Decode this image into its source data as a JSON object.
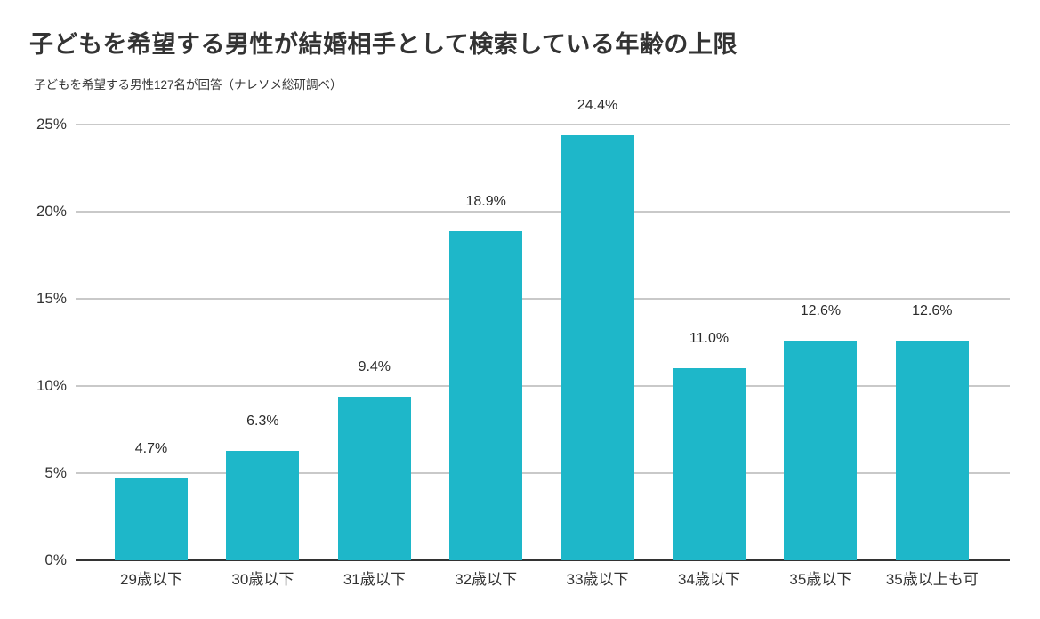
{
  "chart_data": {
    "type": "bar",
    "title": "子どもを希望する男性が結婚相手として検索している年齢の上限",
    "subtitle": "子どもを希望する男性127名が回答（ナレソメ総研調べ）",
    "categories": [
      "29歳以下",
      "30歳以下",
      "31歳以下",
      "32歳以下",
      "33歳以下",
      "34歳以下",
      "35歳以下",
      "35歳以上も可"
    ],
    "values": [
      4.7,
      6.3,
      9.4,
      18.9,
      24.4,
      11.0,
      12.6,
      12.6
    ],
    "value_labels": [
      "4.7%",
      "6.3%",
      "9.4%",
      "18.9%",
      "24.4%",
      "11.0%",
      "12.6%",
      "12.6%"
    ],
    "xlabel": "",
    "ylabel": "",
    "ylim": [
      0,
      25
    ],
    "yticks": [
      0,
      5,
      10,
      15,
      20,
      25
    ],
    "ytick_labels": [
      "0%",
      "5%",
      "10%",
      "15%",
      "20%",
      "25%"
    ],
    "grid": true,
    "legend": "none",
    "colors": {
      "bar": "#1eb7c9",
      "gridline": "#c9c9c9",
      "axis_line": "#333333",
      "text": "#333333",
      "background": "#ffffff"
    }
  }
}
